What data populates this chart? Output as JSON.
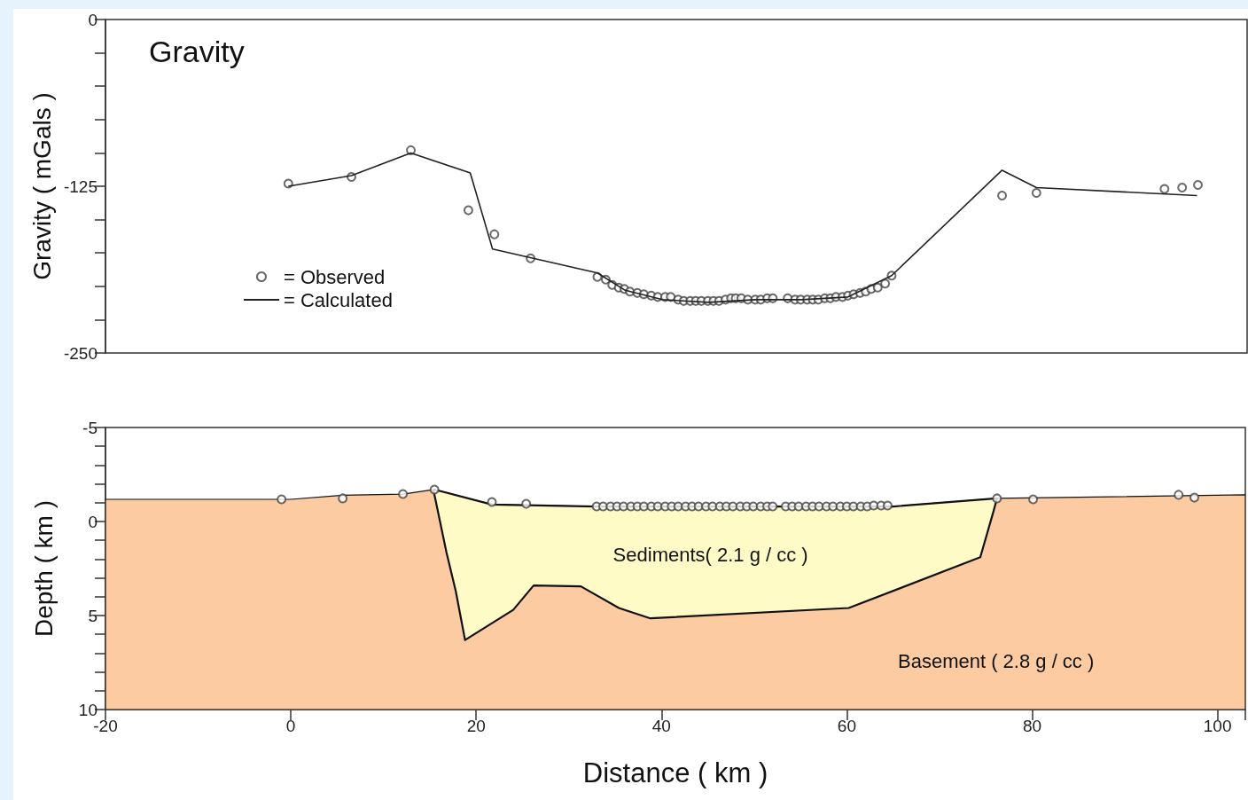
{
  "chart_data": [
    {
      "type": "scatter",
      "title": "Gravity",
      "ylabel": "Gravity ( mGals )",
      "xlim": [
        -20,
        103
      ],
      "xticks": [
        -20,
        0,
        20,
        40,
        60,
        80,
        100
      ],
      "ylim": [
        -250,
        0
      ],
      "yticks": [
        0,
        {
          "value": -25,
          "label": null
        },
        {
          "value": -50,
          "label": null
        },
        {
          "value": -75,
          "label": null
        },
        {
          "value": -100,
          "label": null
        },
        -125,
        {
          "value": -150,
          "label": null
        },
        {
          "value": -175,
          "label": null
        },
        {
          "value": -200,
          "label": null
        },
        {
          "value": -225,
          "label": null
        },
        -250
      ],
      "tick_labels": "y",
      "legend": "left",
      "series": [
        {
          "name": "= Observed",
          "marker": "circle",
          "color": "#444444",
          "x": [
            -0.3,
            6.5,
            12.9,
            19.1,
            21.9,
            25.8,
            33.0,
            33.9,
            34.6,
            35.3,
            35.9,
            36.5,
            37.3,
            38.0,
            38.8,
            39.5,
            40.3,
            40.9,
            41.7,
            42.3,
            43.0,
            43.6,
            44.2,
            44.9,
            45.5,
            46.1,
            46.8,
            47.4,
            47.9,
            48.5,
            49.2,
            50.0,
            50.6,
            51.3,
            51.9,
            53.5,
            54.3,
            54.9,
            55.6,
            56.2,
            56.8,
            57.5,
            58.1,
            58.7,
            59.4,
            60.0,
            60.6,
            61.3,
            61.9,
            62.5,
            63.2,
            64.0,
            64.7,
            76.6,
            80.3,
            94.1,
            96.0,
            97.7
          ],
          "values": [
            -123,
            -118,
            -98,
            -143,
            -161,
            -179,
            -193,
            -195,
            -199,
            -201,
            -202,
            -204,
            -205,
            -206,
            -207,
            -208,
            -208,
            -208,
            -210,
            -211,
            -211,
            -211,
            -211,
            -211,
            -211,
            -211,
            -210,
            -209,
            -209,
            -209,
            -210,
            -210,
            -210,
            -209,
            -209,
            -209,
            -210,
            -210,
            -210,
            -210,
            -210,
            -209,
            -209,
            -208,
            -208,
            -207,
            -206,
            -205,
            -204,
            -202,
            -201,
            -198,
            -192,
            -132,
            -130,
            -127,
            -126,
            -124
          ]
        },
        {
          "name": "= Calculated",
          "type": "line",
          "color": "#222222",
          "x": [
            -0.3,
            6.5,
            12.9,
            19.3,
            21.7,
            33.0,
            36.0,
            40.0,
            45.0,
            50.0,
            55.0,
            60.0,
            64.7,
            76.6,
            80.3,
            97.6
          ],
          "values": [
            -125,
            -117,
            -100,
            -115,
            -172,
            -190,
            -203,
            -210,
            -212,
            -210,
            -210,
            -208,
            -192,
            -113,
            -126,
            -132
          ]
        }
      ]
    },
    {
      "type": "area",
      "xlabel": "Distance ( km )",
      "ylabel": "Depth ( km )",
      "xlim": [
        -20,
        103
      ],
      "xticks": [
        -20,
        0,
        20,
        40,
        60,
        80,
        100
      ],
      "ylim": [
        10,
        -5
      ],
      "yticks": [
        -5,
        {
          "value": -4,
          "label": null
        },
        {
          "value": -3,
          "label": null
        },
        {
          "value": -2,
          "label": null
        },
        {
          "value": -1,
          "label": null
        },
        0,
        {
          "value": 1,
          "label": null
        },
        {
          "value": 2,
          "label": null
        },
        {
          "value": 3,
          "label": null
        },
        {
          "value": 4,
          "label": null
        },
        5,
        {
          "value": 6,
          "label": null
        },
        {
          "value": 7,
          "label": null
        },
        {
          "value": 8,
          "label": null
        },
        {
          "value": 9,
          "label": null
        },
        10
      ],
      "annotations": [
        "Sediments( 2.1 g / cc )",
        "Basement ( 2.8 g / cc )"
      ],
      "series": [
        {
          "color": "#fccba1",
          "x": [
            -20,
            -20,
            0,
            5.6,
            12.1,
            15.5,
            21.7,
            33,
            65,
            76.2,
            103,
            103
          ],
          "values": [
            10,
            -1.18,
            -1.18,
            -1.4,
            -1.46,
            -1.7,
            -0.9,
            -0.8,
            -0.8,
            -1.23,
            -1.42,
            10
          ]
        },
        {
          "color": "#fefbc7",
          "x": [
            15.4,
            16.8,
            17.8,
            18.8,
            24.0,
            26.2,
            31.3,
            35.4,
            38.8,
            60.2,
            74.4,
            75.8,
            76.2,
            65,
            33,
            21.7,
            15.5
          ],
          "values": [
            -1.65,
            1.65,
            3.7,
            6.3,
            4.7,
            3.4,
            3.45,
            4.6,
            5.15,
            4.6,
            1.9,
            -0.5,
            -1.23,
            -0.8,
            -0.8,
            -0.9,
            -1.7
          ]
        },
        {
          "type": "scatter",
          "marker": "circle",
          "color": "#444444",
          "x": [
            -1.0,
            5.6,
            12.1,
            15.5,
            21.7,
            25.4,
            33.0,
            33.7,
            34.5,
            35.2,
            35.9,
            36.7,
            37.4,
            38.1,
            38.9,
            39.6,
            40.4,
            41.1,
            41.8,
            42.6,
            43.3,
            44.0,
            44.8,
            45.5,
            46.3,
            47.0,
            47.7,
            48.5,
            49.2,
            49.9,
            50.7,
            51.4,
            52.0,
            53.4,
            54.1,
            54.8,
            55.6,
            56.3,
            57.0,
            57.8,
            58.5,
            59.3,
            60.0,
            60.7,
            61.5,
            62.2,
            62.9,
            63.7,
            64.4,
            76.2,
            80.1,
            95.8,
            97.5
          ],
          "values": [
            -1.18,
            -1.23,
            -1.46,
            -1.7,
            -1.04,
            -0.94,
            -0.8,
            -0.8,
            -0.8,
            -0.8,
            -0.8,
            -0.8,
            -0.8,
            -0.8,
            -0.8,
            -0.8,
            -0.8,
            -0.8,
            -0.8,
            -0.8,
            -0.8,
            -0.8,
            -0.8,
            -0.8,
            -0.8,
            -0.8,
            -0.8,
            -0.8,
            -0.8,
            -0.8,
            -0.8,
            -0.8,
            -0.8,
            -0.8,
            -0.8,
            -0.8,
            -0.8,
            -0.8,
            -0.8,
            -0.8,
            -0.8,
            -0.8,
            -0.8,
            -0.8,
            -0.8,
            -0.8,
            -0.85,
            -0.85,
            -0.85,
            -1.23,
            -1.18,
            -1.42,
            -1.27
          ]
        }
      ]
    }
  ]
}
